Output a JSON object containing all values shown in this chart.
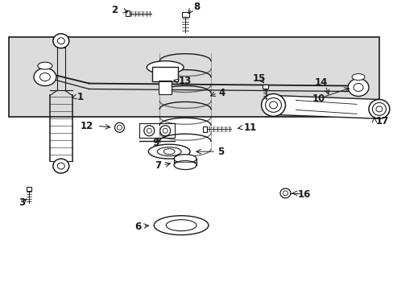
{
  "bg_color": "#ffffff",
  "line_color": "#1a1a1a",
  "box_bg": "#dcdcdc",
  "label_fontsize": 8.5,
  "fig_width": 4.89,
  "fig_height": 3.6,
  "dpi": 100
}
